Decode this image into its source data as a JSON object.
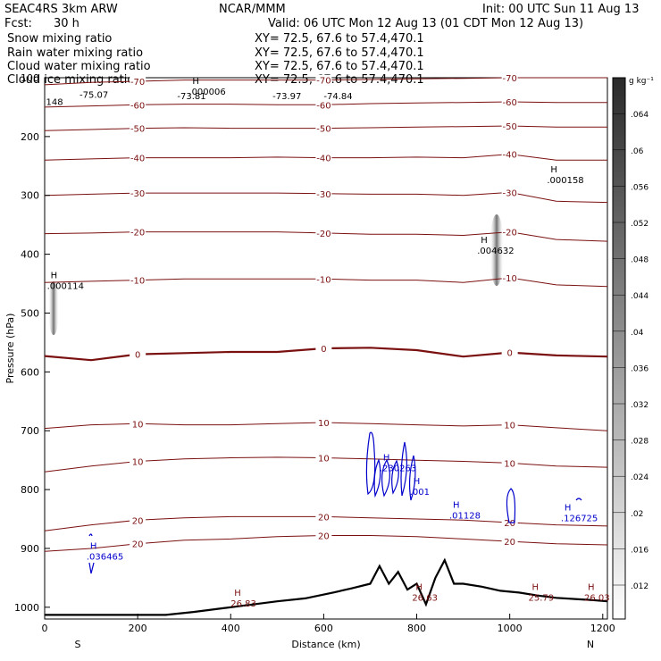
{
  "header": {
    "model": "SEAC4RS   3km ARW",
    "org": "NCAR/MMM",
    "init": "Init: 00 UTC Sun 11 Aug 13",
    "fcst_label": "Fcst:",
    "fcst_value": "30 h",
    "valid": "Valid: 06 UTC Mon 12 Aug 13 (01 CDT Mon 12 Aug 13)"
  },
  "fields": [
    {
      "name": "Snow mixing ratio",
      "xy": "XY=  72.5, 67.6 to  57.4,470.1",
      "color": "#000000"
    },
    {
      "name": "Rain water mixing ratio",
      "xy": "XY=  72.5, 67.6 to  57.4,470.1",
      "color": "#cc0000"
    },
    {
      "name": "Cloud water mixing ratio",
      "xy": "XY=  72.5, 67.6 to  57.4,470.1",
      "color": "#0000cc"
    },
    {
      "name": "Cloud ice mixing ratio",
      "xy": "XY=  72.5, 67.6 to  57.4,470.1",
      "color": "#000000"
    }
  ],
  "colors": {
    "temperature_contour": "#7a1010",
    "freezing_level": "#7a1010",
    "cloud_water": "#0000cc",
    "terrain": "#000000"
  },
  "chart_data": {
    "type": "line",
    "xlabel": "Distance (km)",
    "ylabel": "Pressure (hPa)",
    "x_ticks": [
      "0",
      "200",
      "400",
      "600",
      "800",
      "1000",
      "1200"
    ],
    "xlim": [
      0,
      1210
    ],
    "y_ticks": [
      "100",
      "200",
      "300",
      "400",
      "500",
      "600",
      "700",
      "800",
      "900",
      "1000"
    ],
    "ylim": [
      1020,
      100
    ],
    "y_scale": "linear, pressure increasing downward",
    "endpoint_left": "S",
    "endpoint_right": "N",
    "colorbar": {
      "unit": "g kg⁻¹",
      "labels": [
        ".012",
        ".016",
        ".02",
        ".024",
        ".028",
        ".032",
        ".036",
        ".04",
        ".044",
        ".048",
        ".052",
        ".056",
        ".06",
        ".064"
      ]
    },
    "temperature_contours_degC": [
      {
        "label": "-70",
        "x": [
          0,
          100,
          200,
          300,
          400,
          500,
          600,
          700,
          800,
          900,
          1000,
          1100,
          1210
        ],
        "p": [
          112,
          108,
          106,
          104,
          104,
          104,
          104,
          103,
          102,
          101,
          100,
          100,
          100
        ]
      },
      {
        "label": "-60",
        "x": [
          0,
          100,
          200,
          300,
          400,
          500,
          600,
          700,
          800,
          900,
          1000,
          1100,
          1210
        ],
        "p": [
          150,
          148,
          146,
          145,
          145,
          146,
          146,
          144,
          143,
          142,
          141,
          142,
          142
        ]
      },
      {
        "label": "-50",
        "x": [
          0,
          100,
          200,
          300,
          400,
          500,
          600,
          700,
          800,
          900,
          1000,
          1100,
          1210
        ],
        "p": [
          190,
          188,
          186,
          185,
          186,
          186,
          186,
          185,
          184,
          183,
          182,
          184,
          184
        ]
      },
      {
        "label": "-40",
        "x": [
          0,
          100,
          200,
          300,
          400,
          500,
          600,
          700,
          800,
          900,
          1000,
          1100,
          1210
        ],
        "p": [
          240,
          238,
          236,
          236,
          236,
          235,
          236,
          236,
          235,
          236,
          230,
          240,
          240
        ]
      },
      {
        "label": "-30",
        "x": [
          0,
          100,
          200,
          300,
          400,
          500,
          600,
          700,
          800,
          900,
          1000,
          1100,
          1210
        ],
        "p": [
          300,
          298,
          296,
          296,
          296,
          296,
          297,
          298,
          298,
          300,
          295,
          310,
          312
        ]
      },
      {
        "label": "-20",
        "x": [
          0,
          100,
          200,
          300,
          400,
          500,
          600,
          700,
          800,
          900,
          1000,
          1100,
          1210
        ],
        "p": [
          365,
          364,
          362,
          362,
          362,
          362,
          364,
          366,
          366,
          368,
          362,
          375,
          378
        ]
      },
      {
        "label": "-10",
        "x": [
          0,
          100,
          200,
          300,
          400,
          500,
          600,
          700,
          800,
          900,
          1000,
          1100,
          1210
        ],
        "p": [
          448,
          446,
          444,
          442,
          442,
          442,
          442,
          444,
          444,
          448,
          440,
          452,
          455
        ]
      },
      {
        "label": "0",
        "freezing": true,
        "x": [
          0,
          100,
          200,
          300,
          400,
          500,
          600,
          700,
          800,
          900,
          1000,
          1100,
          1210
        ],
        "p": [
          573,
          580,
          570,
          568,
          566,
          566,
          560,
          559,
          563,
          574,
          567,
          572,
          574
        ]
      },
      {
        "label": "10",
        "x": [
          0,
          100,
          200,
          300,
          400,
          500,
          600,
          700,
          800,
          900,
          1000,
          1100,
          1210
        ],
        "p": [
          696,
          690,
          688,
          690,
          690,
          688,
          686,
          688,
          690,
          692,
          690,
          695,
          700
        ]
      },
      {
        "label": "10",
        "x": [
          0,
          100,
          200,
          300,
          400,
          500,
          600,
          700,
          800,
          900,
          1000,
          1100,
          1210
        ],
        "p": [
          770,
          760,
          752,
          748,
          746,
          745,
          746,
          748,
          750,
          752,
          755,
          760,
          762
        ]
      },
      {
        "label": "20",
        "x": [
          0,
          100,
          200,
          300,
          400,
          500,
          600,
          700,
          800,
          900,
          1000,
          1100,
          1210
        ],
        "p": [
          870,
          860,
          852,
          848,
          846,
          846,
          846,
          848,
          850,
          852,
          856,
          860,
          862
        ]
      },
      {
        "label": "20",
        "x": [
          0,
          100,
          200,
          300,
          400,
          500,
          600,
          700,
          800,
          900,
          1000,
          1100,
          1210
        ],
        "p": [
          905,
          900,
          892,
          886,
          884,
          880,
          878,
          878,
          880,
          884,
          888,
          892,
          894
        ]
      }
    ],
    "terrain_pressure_hPa": {
      "x": [
        0,
        100,
        200,
        260,
        320,
        380,
        440,
        500,
        560,
        620,
        660,
        700,
        720,
        740,
        760,
        780,
        800,
        820,
        840,
        860,
        880,
        900,
        940,
        980,
        1020,
        1060,
        1100,
        1140,
        1180,
        1210
      ],
      "p": [
        1013,
        1013,
        1013,
        1013,
        1008,
        1002,
        996,
        990,
        985,
        975,
        968,
        960,
        930,
        960,
        940,
        970,
        960,
        995,
        950,
        920,
        960,
        960,
        965,
        972,
        975,
        980,
        984,
        986,
        988,
        990
      ]
    },
    "cloud_water_mixing_ratio_maxima": [
      {
        "value": ".036465",
        "x_km": 90,
        "p_hPa": 910
      },
      {
        "value": ".230263",
        "x_km": 720,
        "p_hPa": 760
      },
      {
        "value": ".001",
        "x_km": 785,
        "p_hPa": 800
      },
      {
        "value": ".01128",
        "x_km": 870,
        "p_hPa": 840
      },
      {
        "value": ".126725",
        "x_km": 1110,
        "p_hPa": 845
      }
    ],
    "snow_mixing_ratio_maxima": [
      {
        "value": ".000006",
        "x_km": 310,
        "p_hPa": 120
      },
      {
        "value": ".000158",
        "x_km": 1080,
        "p_hPa": 270
      },
      {
        "value": ".004632",
        "x_km": 930,
        "p_hPa": 390
      },
      {
        "value": ".000114",
        "x_km": 5,
        "p_hPa": 450
      }
    ],
    "surface_maxima": [
      {
        "value": "26.83",
        "x_km": 400,
        "p_hPa": 990
      },
      {
        "value": "26.63",
        "x_km": 790,
        "p_hPa": 980
      },
      {
        "value": "25.79",
        "x_km": 1040,
        "p_hPa": 980
      },
      {
        "value": "26.03",
        "x_km": 1160,
        "p_hPa": 980
      }
    ],
    "top_labels": [
      {
        "value": "148",
        "x_km": 3,
        "p_hPa": 140
      },
      {
        "value": "-75.07",
        "x_km": 75,
        "p_hPa": 128
      },
      {
        "value": "-73.81",
        "x_km": 285,
        "p_hPa": 130
      },
      {
        "value": "-73.97",
        "x_km": 490,
        "p_hPa": 130
      },
      {
        "value": "-74.84",
        "x_km": 600,
        "p_hPa": 130
      }
    ]
  }
}
